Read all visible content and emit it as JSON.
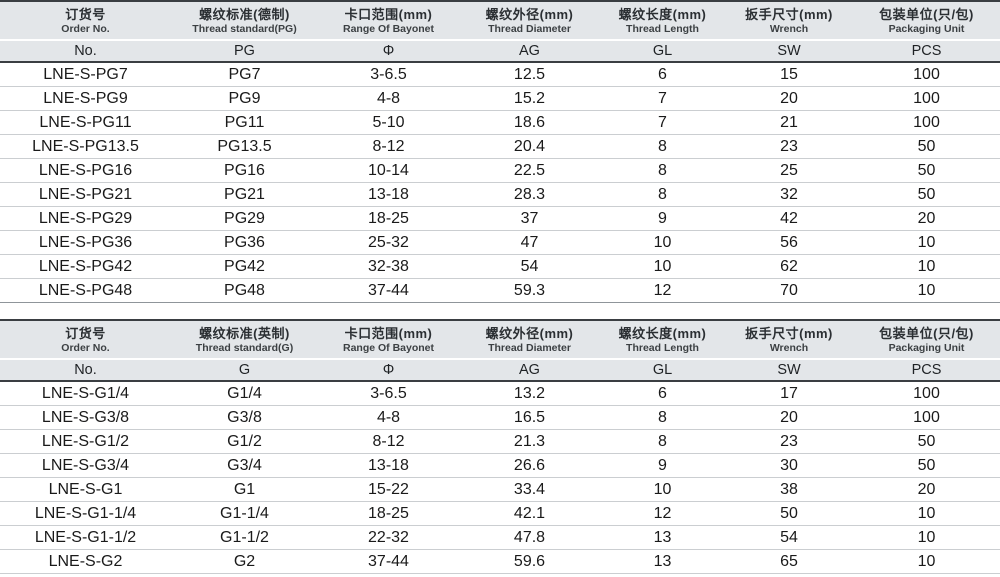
{
  "colors": {
    "header_bg": "#e3e6e9",
    "dark_border": "#3a3e42",
    "row_line": "#cbced1",
    "table_end_line": "#8f959a",
    "text": "#17191b"
  },
  "tables": [
    {
      "name": "pg-thread-spec-table",
      "columns": [
        {
          "zh": "订货号",
          "en": "Order No.",
          "symbol": "No."
        },
        {
          "zh": "螺纹标准(德制)",
          "en": "Thread standard(PG)",
          "symbol": "PG"
        },
        {
          "zh": "卡口范围(mm)",
          "en": "Range Of Bayonet",
          "symbol": "Φ"
        },
        {
          "zh": "螺纹外径(mm)",
          "en": "Thread Diameter",
          "symbol": "AG"
        },
        {
          "zh": "螺纹长度(mm)",
          "en": "Thread Length",
          "symbol": "GL"
        },
        {
          "zh": "扳手尺寸(mm)",
          "en": "Wrench",
          "symbol": "SW"
        },
        {
          "zh": "包装单位(只/包)",
          "en": "Packaging Unit",
          "symbol": "PCS"
        }
      ],
      "rows": [
        [
          "LNE-S-PG7",
          "PG7",
          "3-6.5",
          "12.5",
          "6",
          "15",
          "100"
        ],
        [
          "LNE-S-PG9",
          "PG9",
          "4-8",
          "15.2",
          "7",
          "20",
          "100"
        ],
        [
          "LNE-S-PG11",
          "PG11",
          "5-10",
          "18.6",
          "7",
          "21",
          "100"
        ],
        [
          "LNE-S-PG13.5",
          "PG13.5",
          "8-12",
          "20.4",
          "8",
          "23",
          "50"
        ],
        [
          "LNE-S-PG16",
          "PG16",
          "10-14",
          "22.5",
          "8",
          "25",
          "50"
        ],
        [
          "LNE-S-PG21",
          "PG21",
          "13-18",
          "28.3",
          "8",
          "32",
          "50"
        ],
        [
          "LNE-S-PG29",
          "PG29",
          "18-25",
          "37",
          "9",
          "42",
          "20"
        ],
        [
          "LNE-S-PG36",
          "PG36",
          "25-32",
          "47",
          "10",
          "56",
          "10"
        ],
        [
          "LNE-S-PG42",
          "PG42",
          "32-38",
          "54",
          "10",
          "62",
          "10"
        ],
        [
          "LNE-S-PG48",
          "PG48",
          "37-44",
          "59.3",
          "12",
          "70",
          "10"
        ]
      ]
    },
    {
      "name": "g-thread-spec-table",
      "columns": [
        {
          "zh": "订货号",
          "en": "Order No.",
          "symbol": "No."
        },
        {
          "zh": "螺纹标准(英制)",
          "en": "Thread standard(G)",
          "symbol": "G"
        },
        {
          "zh": "卡口范围(mm)",
          "en": "Range Of Bayonet",
          "symbol": "Φ"
        },
        {
          "zh": "螺纹外径(mm)",
          "en": "Thread Diameter",
          "symbol": "AG"
        },
        {
          "zh": "螺纹长度(mm)",
          "en": "Thread Length",
          "symbol": "GL"
        },
        {
          "zh": "扳手尺寸(mm)",
          "en": "Wrench",
          "symbol": "SW"
        },
        {
          "zh": "包装单位(只/包)",
          "en": "Packaging Unit",
          "symbol": "PCS"
        }
      ],
      "rows": [
        [
          "LNE-S-G1/4",
          "G1/4",
          "3-6.5",
          "13.2",
          "6",
          "17",
          "100"
        ],
        [
          "LNE-S-G3/8",
          "G3/8",
          "4-8",
          "16.5",
          "8",
          "20",
          "100"
        ],
        [
          "LNE-S-G1/2",
          "G1/2",
          "8-12",
          "21.3",
          "8",
          "23",
          "50"
        ],
        [
          "LNE-S-G3/4",
          "G3/4",
          "13-18",
          "26.6",
          "9",
          "30",
          "50"
        ],
        [
          "LNE-S-G1",
          "G1",
          "15-22",
          "33.4",
          "10",
          "38",
          "20"
        ],
        [
          "LNE-S-G1-1/4",
          "G1-1/4",
          "18-25",
          "42.1",
          "12",
          "50",
          "10"
        ],
        [
          "LNE-S-G1-1/2",
          "G1-1/2",
          "22-32",
          "47.8",
          "13",
          "54",
          "10"
        ],
        [
          "LNE-S-G2",
          "G2",
          "37-44",
          "59.6",
          "13",
          "65",
          "10"
        ]
      ]
    }
  ]
}
